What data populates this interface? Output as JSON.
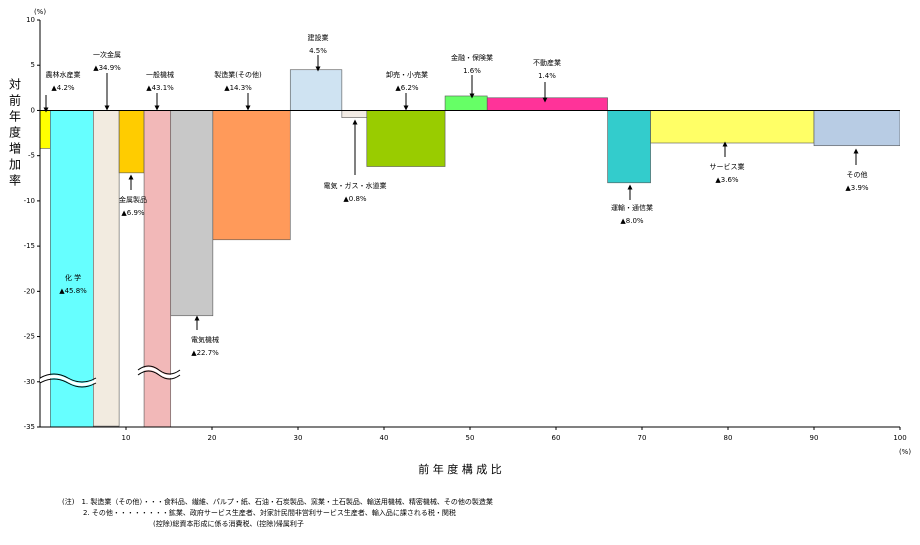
{
  "chart_data": {
    "type": "variable-width-bar",
    "y_unit": "(%)",
    "x_unit": "(%)",
    "ylabel": "対前年度増加率",
    "xlabel": "前 年 度 構 成 比",
    "xlim": [
      0,
      100
    ],
    "xticks": [
      10,
      20,
      30,
      40,
      50,
      60,
      70,
      80,
      90,
      100
    ],
    "ylim": [
      -35,
      10
    ],
    "yticks": [
      10,
      5,
      0,
      -5,
      -10,
      -15,
      -20,
      -25,
      -30,
      -35
    ],
    "series": [
      {
        "names": [
          "農林水産業",
          "化 学",
          "一次金属",
          "金属製品",
          "一般機械",
          "電気機械",
          "製造業(その他)",
          "建設業",
          "電気・ガス・水道業",
          "卸売・小売業",
          "金融・保険業",
          "不動産業",
          "運輸・通信業",
          "サービス業",
          "その他"
        ],
        "widths": [
          1.2,
          5.0,
          3.0,
          2.9,
          3.1,
          4.9,
          9.0,
          6.0,
          2.9,
          9.1,
          4.9,
          14.0,
          5.0,
          19.0,
          10.0
        ],
        "values": [
          -4.2,
          -45.8,
          -34.9,
          -6.9,
          -43.1,
          -22.7,
          -14.3,
          4.5,
          -0.8,
          -6.2,
          1.6,
          1.4,
          -8.0,
          -3.6,
          -3.9
        ],
        "value_labels": [
          "▲4.2%",
          "▲45.8%",
          "▲34.9%",
          "▲6.9%",
          "▲43.1%",
          "▲22.7%",
          "▲14.3%",
          "4.5%",
          "▲0.8%",
          "▲6.2%",
          "1.6%",
          "1.4%",
          "▲8.0%",
          "▲3.6%",
          "▲3.9%"
        ],
        "colors": [
          "#ffff00",
          "#66ffff",
          "#f2ebe0",
          "#ffcc00",
          "#f2b8b8",
          "#c8c8c8",
          "#ff9a5a",
          "#cfe3f2",
          "#f2ebe4",
          "#99cc00",
          "#66ff66",
          "#ff3399",
          "#33cccc",
          "#ffff66",
          "#b8cce4"
        ]
      }
    ],
    "notes": [
      "(注)　1. 製造業（その他）・・・食料品、繊維、パルプ・紙、石油・石炭製品、窯業・土石製品、輸送用機械、精密機械、その他の製造業",
      "　　　2. その他・・・・・・・・鉱業、政府サービス生産者、対家計民間非営利サービス生産者、輸入品に課される税・関税",
      "　　　　　　　　　　　　　(控除)総資本形成に係る消費税、(控除)帰属利子"
    ]
  }
}
